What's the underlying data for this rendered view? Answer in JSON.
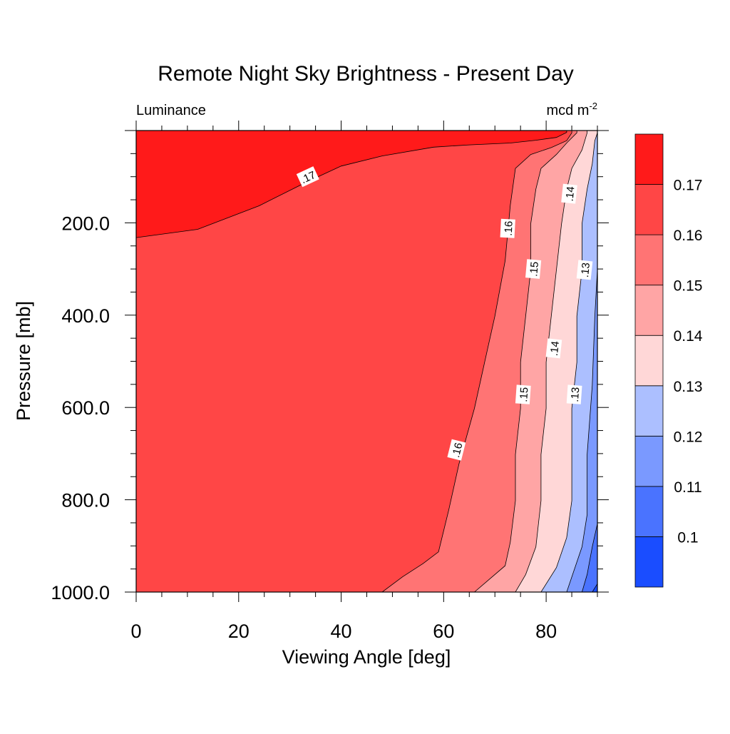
{
  "chart_data": {
    "type": "contour",
    "title": "Remote Night Sky Brightness - Present Day",
    "left_string": "Luminance",
    "right_string": {
      "base": "mcd m",
      "sup": "-2"
    },
    "xlabel": "Viewing Angle [deg]",
    "ylabel": "Pressure [mb]",
    "xlim": [
      0,
      90
    ],
    "ylim": [
      1000,
      0
    ],
    "y_axis_reversed": true,
    "x_ticks": [
      0,
      20,
      40,
      60,
      80
    ],
    "x_tick_labels": [
      "0",
      "20",
      "40",
      "60",
      "80"
    ],
    "y_ticks": [
      200,
      400,
      600,
      800,
      1000
    ],
    "y_tick_labels": [
      "200.0",
      "400.0",
      "600.0",
      "800.0",
      "1000.0"
    ],
    "levels": [
      0.1,
      0.11,
      0.12,
      0.13,
      0.14,
      0.15,
      0.16,
      0.17
    ],
    "fill_colors": [
      "#1a4dff",
      "#4a73ff",
      "#7a99ff",
      "#acbfff",
      "#ffd7d7",
      "#ffa5a5",
      "#ff7474",
      "#ff4646",
      "#ff1a1a"
    ],
    "colorbar": {
      "position": "right",
      "labels": [
        "0.1",
        "0.11",
        "0.12",
        "0.13",
        "0.14",
        "0.15",
        "0.16",
        "0.17"
      ]
    },
    "contours": [
      {
        "level": 0.17,
        "points": [
          [
            0,
            232
          ],
          [
            12,
            214
          ],
          [
            24,
            163
          ],
          [
            33,
            113
          ],
          [
            40,
            77
          ],
          [
            48,
            55
          ],
          [
            58,
            36
          ],
          [
            65,
            31
          ],
          [
            73,
            27
          ],
          [
            78,
            21
          ],
          [
            82,
            15
          ],
          [
            84,
            4
          ],
          [
            84,
            0
          ]
        ]
      },
      {
        "level": 0.16,
        "points": [
          [
            48,
            1000
          ],
          [
            52,
            967
          ],
          [
            56,
            938
          ],
          [
            59,
            913
          ],
          [
            61,
            822
          ],
          [
            63,
            722
          ],
          [
            66,
            602
          ],
          [
            68,
            502
          ],
          [
            70,
            402
          ],
          [
            72,
            282
          ],
          [
            73,
            162
          ],
          [
            74,
            82
          ],
          [
            77,
            52
          ],
          [
            81,
            37
          ],
          [
            84,
            22
          ],
          [
            85,
            5
          ],
          [
            85,
            0
          ]
        ]
      },
      {
        "level": 0.15,
        "points": [
          [
            66,
            1000
          ],
          [
            72,
            943
          ],
          [
            73,
            892
          ],
          [
            74,
            802
          ],
          [
            74,
            702
          ],
          [
            75,
            602
          ],
          [
            75,
            502
          ],
          [
            76,
            402
          ],
          [
            77,
            302
          ],
          [
            77,
            202
          ],
          [
            78,
            127
          ],
          [
            79,
            82
          ],
          [
            82,
            52
          ],
          [
            84,
            27
          ],
          [
            86,
            5
          ],
          [
            86,
            0
          ]
        ]
      },
      {
        "level": 0.14,
        "points": [
          [
            74,
            1000
          ],
          [
            76,
            962
          ],
          [
            78,
            902
          ],
          [
            79,
            802
          ],
          [
            79,
            702
          ],
          [
            80,
            602
          ],
          [
            80,
            502
          ],
          [
            81,
            402
          ],
          [
            82,
            302
          ],
          [
            83,
            202
          ],
          [
            84,
            127
          ],
          [
            85,
            82
          ],
          [
            87,
            42
          ],
          [
            88,
            5
          ],
          [
            88,
            0
          ]
        ]
      },
      {
        "level": 0.13,
        "points": [
          [
            79,
            1000
          ],
          [
            82,
            947
          ],
          [
            84,
            882
          ],
          [
            85,
            802
          ],
          [
            85,
            702
          ],
          [
            85,
            602
          ],
          [
            86,
            502
          ],
          [
            86,
            402
          ],
          [
            87,
            302
          ],
          [
            87,
            202
          ],
          [
            88,
            127
          ],
          [
            89,
            72
          ],
          [
            89.5,
            22
          ],
          [
            90,
            5
          ]
        ]
      },
      {
        "level": 0.12,
        "points": [
          [
            84,
            1000
          ],
          [
            87,
            902
          ],
          [
            88,
            832
          ],
          [
            88,
            702
          ],
          [
            89,
            552
          ],
          [
            89.5,
            402
          ],
          [
            90,
            302
          ]
        ]
      },
      {
        "level": 0.11,
        "points": [
          [
            87,
            1000
          ],
          [
            88,
            962
          ],
          [
            89,
            902
          ],
          [
            90,
            852
          ]
        ]
      },
      {
        "level": 0.1,
        "points": [
          [
            89,
            1000
          ],
          [
            90,
            982
          ]
        ]
      }
    ],
    "line_labels": [
      {
        "text": ".17",
        "x": 33.5,
        "y": 100,
        "angle": -25
      },
      {
        "text": ".16",
        "x": 72.5,
        "y": 212,
        "angle": -87
      },
      {
        "text": ".16",
        "x": 62.5,
        "y": 692,
        "angle": -76
      },
      {
        "text": ".15",
        "x": 77.5,
        "y": 300,
        "angle": -85
      },
      {
        "text": ".15",
        "x": 75.5,
        "y": 572,
        "angle": -86
      },
      {
        "text": ".14",
        "x": 84.5,
        "y": 137,
        "angle": -84
      },
      {
        "text": ".14",
        "x": 81.5,
        "y": 472,
        "angle": -84
      },
      {
        "text": ".13",
        "x": 87.5,
        "y": 302,
        "angle": -84
      },
      {
        "text": ".13",
        "x": 85.5,
        "y": 572,
        "angle": -86
      }
    ]
  }
}
